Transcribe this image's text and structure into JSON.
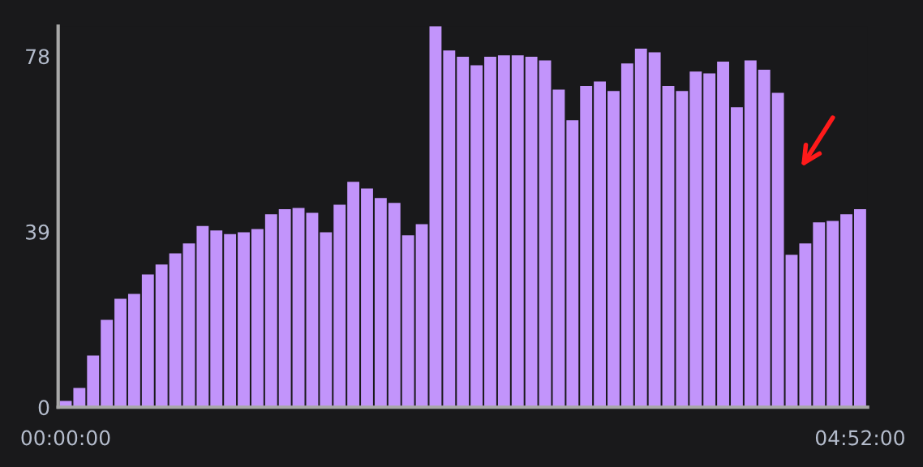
{
  "chart_data": {
    "type": "bar",
    "categories": [
      "00:00:00",
      null,
      null,
      null,
      null,
      null,
      null,
      null,
      null,
      null,
      null,
      null,
      null,
      null,
      null,
      null,
      null,
      null,
      null,
      null,
      null,
      null,
      null,
      null,
      null,
      null,
      null,
      null,
      null,
      null,
      null,
      null,
      null,
      null,
      null,
      null,
      null,
      null,
      null,
      null,
      null,
      null,
      null,
      null,
      null,
      null,
      null,
      null,
      null,
      null,
      null,
      null,
      null,
      null,
      null,
      null,
      null,
      null,
      "04:52:00"
    ],
    "values": [
      1.4,
      4.3,
      11.5,
      19.4,
      24.1,
      25.2,
      29.5,
      31.7,
      34.2,
      36.4,
      40.3,
      39.3,
      38.5,
      38.9,
      39.6,
      42.9,
      44.0,
      44.3,
      43.2,
      38.9,
      45.0,
      50.1,
      48.6,
      46.5,
      45.4,
      38.2,
      40.7,
      84.7,
      79.3,
      77.9,
      76.0,
      77.9,
      78.2,
      78.2,
      77.9,
      77.1,
      70.6,
      63.8,
      71.4,
      72.4,
      70.3,
      76.4,
      79.7,
      78.9,
      71.4,
      70.3,
      74.6,
      74.2,
      76.8,
      66.7,
      77.1,
      75.0,
      69.9,
      33.9,
      36.4,
      41.1,
      41.4,
      42.9,
      44.0
    ],
    "color": "#c294fb",
    "ylim": [
      0,
      84.7
    ],
    "yticks": [
      0,
      39,
      78
    ],
    "grid": false,
    "legend": false
  }
}
